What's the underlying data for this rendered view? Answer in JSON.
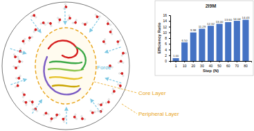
{
  "chart_data": {
    "type": "bar",
    "title": "2I9M",
    "x_label": "Step (N)",
    "y_label": "Efficiency Ratio",
    "categories": [
      "1",
      "10",
      "20",
      "30",
      "40",
      "50",
      "60",
      "70",
      "80"
    ],
    "values": [
      1.0,
      6.5,
      9.98,
      11.29,
      12.32,
      13.0,
      13.6,
      14.04,
      14.43
    ],
    "value_labels": [
      "1.00",
      "6.50",
      "9.98",
      "11.29",
      "12.32",
      "13.00",
      "13.60",
      "14.04",
      "14.43"
    ],
    "color": "#4472c4",
    "ylim": [
      0,
      16
    ],
    "yticks": [
      0,
      2,
      4,
      6,
      8,
      10,
      12,
      14,
      16
    ],
    "data_labels": true
  },
  "diagram": {
    "labels": {
      "force": "Force",
      "core": "Core Layer",
      "peripheral": "Peripheral Layer"
    }
  }
}
